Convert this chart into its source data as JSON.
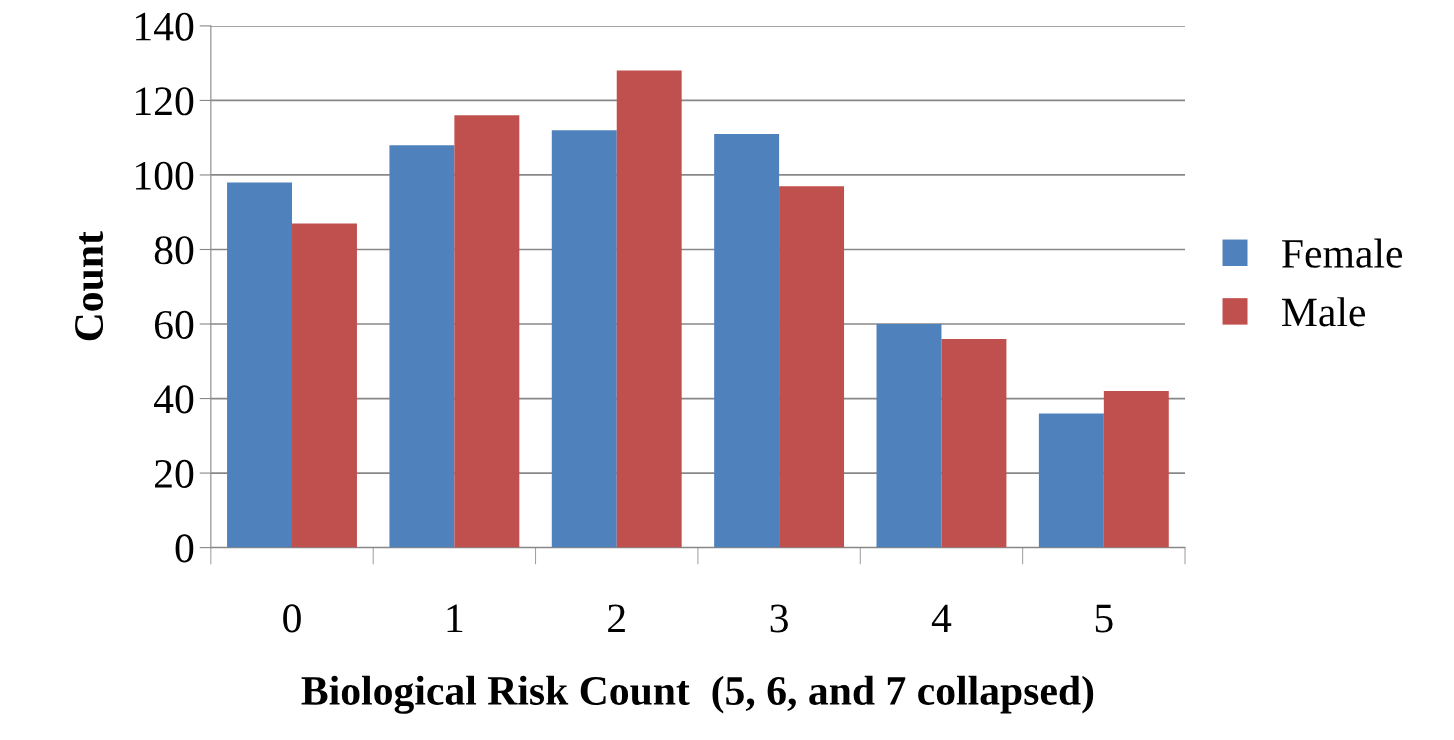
{
  "chart_data": {
    "type": "bar",
    "xlabel": "Biological Risk Count  (5, 6, and 7 collapsed)",
    "ylabel": "Count",
    "categories": [
      "0",
      "1",
      "2",
      "3",
      "4",
      "5"
    ],
    "series": [
      {
        "name": "Female",
        "color": "#4f81bd",
        "values": [
          98,
          108,
          112,
          111,
          60,
          36
        ]
      },
      {
        "name": "Male",
        "color": "#c0504d",
        "values": [
          87,
          116,
          128,
          97,
          56,
          42
        ]
      }
    ],
    "ylim": [
      0,
      140
    ],
    "yticks": [
      0,
      20,
      40,
      60,
      80,
      100,
      120,
      140
    ],
    "grid": "y",
    "legend": "right"
  }
}
